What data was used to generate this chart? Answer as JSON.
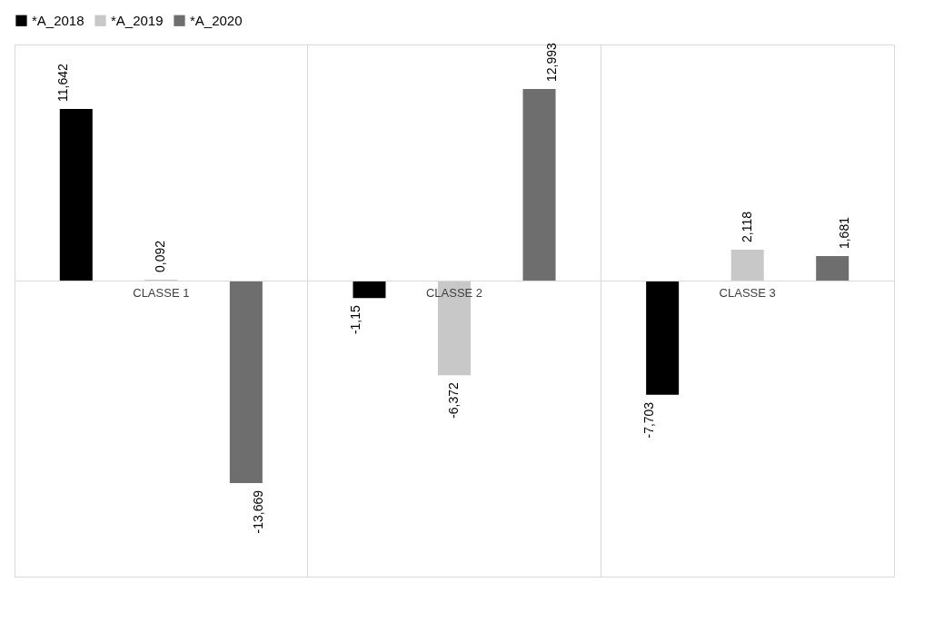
{
  "chart_data": {
    "type": "bar",
    "categories": [
      "CLASSE 1",
      "CLASSE 2",
      "CLASSE 3"
    ],
    "series": [
      {
        "name": "*A_2018",
        "color": "#000000",
        "values": [
          11.642,
          -1.15,
          -7.703
        ],
        "value_labels": [
          "11,642",
          "-1,15",
          "-7,703"
        ]
      },
      {
        "name": "*A_2019",
        "color": "#c8c8c8",
        "values": [
          0.092,
          -6.372,
          2.118
        ],
        "value_labels": [
          "0,092",
          "-6,372",
          "2,118"
        ]
      },
      {
        "name": "*A_2020",
        "color": "#6e6e6e",
        "values": [
          -13.669,
          12.993,
          1.681
        ],
        "value_labels": [
          "-13,669",
          "12,993",
          "1,681"
        ]
      }
    ],
    "ylim": [
      -20,
      16
    ],
    "grid": "x",
    "legend": "top"
  }
}
